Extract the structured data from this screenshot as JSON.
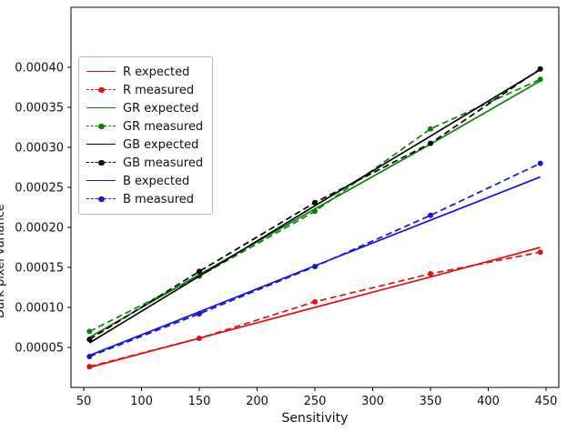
{
  "figure": {
    "background": "#ffffff"
  },
  "chart_data": {
    "type": "line",
    "title": "",
    "xlabel": "Sensitivity",
    "ylabel": "Dark pixel variance",
    "grid": false,
    "legend_position": "upper-left",
    "xlim": [
      39,
      461
    ],
    "ylim": [
      0,
      0.000475
    ],
    "x_ticks": [
      50,
      100,
      150,
      200,
      250,
      300,
      350,
      400,
      450
    ],
    "y_ticks": [
      {
        "value": 5e-05,
        "label": "0.00005"
      },
      {
        "value": 0.0001,
        "label": "0.00010"
      },
      {
        "value": 0.00015,
        "label": "0.00015"
      },
      {
        "value": 0.0002,
        "label": "0.00020"
      },
      {
        "value": 0.00025,
        "label": "0.00025"
      },
      {
        "value": 0.0003,
        "label": "0.00030"
      },
      {
        "value": 0.00035,
        "label": "0.00035"
      },
      {
        "value": 0.0004,
        "label": "0.00040"
      }
    ],
    "x": [
      55,
      150,
      250,
      350,
      445
    ],
    "series": [
      {
        "name": "R expected",
        "color": "#e01212",
        "style": "solid",
        "values": [
          2.5e-05,
          6.15e-05,
          0.0001,
          0.000138,
          0.000175
        ]
      },
      {
        "name": "R measured",
        "color": "#e01212",
        "style": "dashed",
        "values": [
          2.6e-05,
          6.14e-05,
          0.000107,
          0.000142,
          0.000169
        ]
      },
      {
        "name": "GR expected",
        "color": "#0a800a",
        "style": "solid",
        "values": [
          6.25e-05,
          0.000141,
          0.000223,
          0.000304,
          0.000383
        ]
      },
      {
        "name": "GR measured",
        "color": "#0a800a",
        "style": "dashed",
        "values": [
          7e-05,
          0.000139,
          0.00022,
          0.000323,
          0.000385
        ]
      },
      {
        "name": "GB expected",
        "color": "#000000",
        "style": "solid",
        "values": [
          5.57e-05,
          0.000139,
          0.000227,
          0.000314,
          0.000397
        ]
      },
      {
        "name": "GB measured",
        "color": "#000000",
        "style": "dashed",
        "values": [
          6e-05,
          0.000145,
          0.000231,
          0.000305,
          0.000398
        ]
      },
      {
        "name": "B expected",
        "color": "#1414dd",
        "style": "solid",
        "values": [
          4e-05,
          9.44e-05,
          0.000152,
          0.000209,
          0.000263
        ]
      },
      {
        "name": "B measured",
        "color": "#1414dd",
        "style": "dashed",
        "values": [
          3.86e-05,
          9.2e-05,
          0.000151,
          0.000215,
          0.00028
        ]
      }
    ]
  }
}
